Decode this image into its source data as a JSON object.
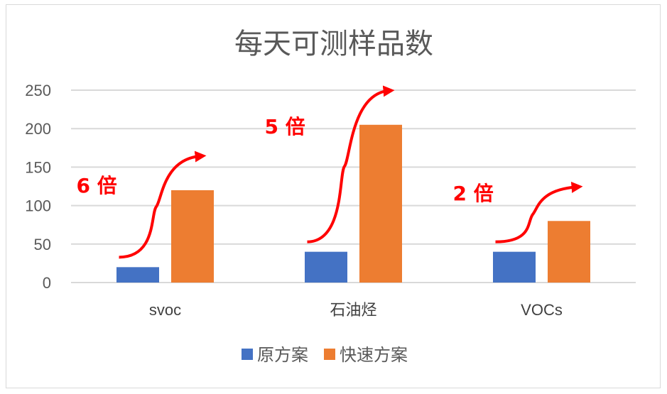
{
  "chart_data": {
    "type": "bar",
    "title": "每天可测样品数",
    "categories": [
      "svoc",
      "石油烃",
      "VOCs"
    ],
    "series": [
      {
        "name": "原方案",
        "values": [
          20,
          40,
          40
        ],
        "color": "#4472c4"
      },
      {
        "name": "快速方案",
        "values": [
          120,
          205,
          80
        ],
        "color": "#ed7d31"
      }
    ],
    "ylim": [
      0,
      250
    ],
    "yticks": [
      0,
      50,
      100,
      150,
      200,
      250
    ],
    "grid": true,
    "legend": "bottom",
    "xlabel": "",
    "ylabel": "",
    "annotations": [
      {
        "category": "svoc",
        "text": "6 倍"
      },
      {
        "category": "石油烃",
        "text": "5 倍"
      },
      {
        "category": "VOCs",
        "text": "2 倍"
      }
    ],
    "annotation_color": "#ff0000"
  }
}
